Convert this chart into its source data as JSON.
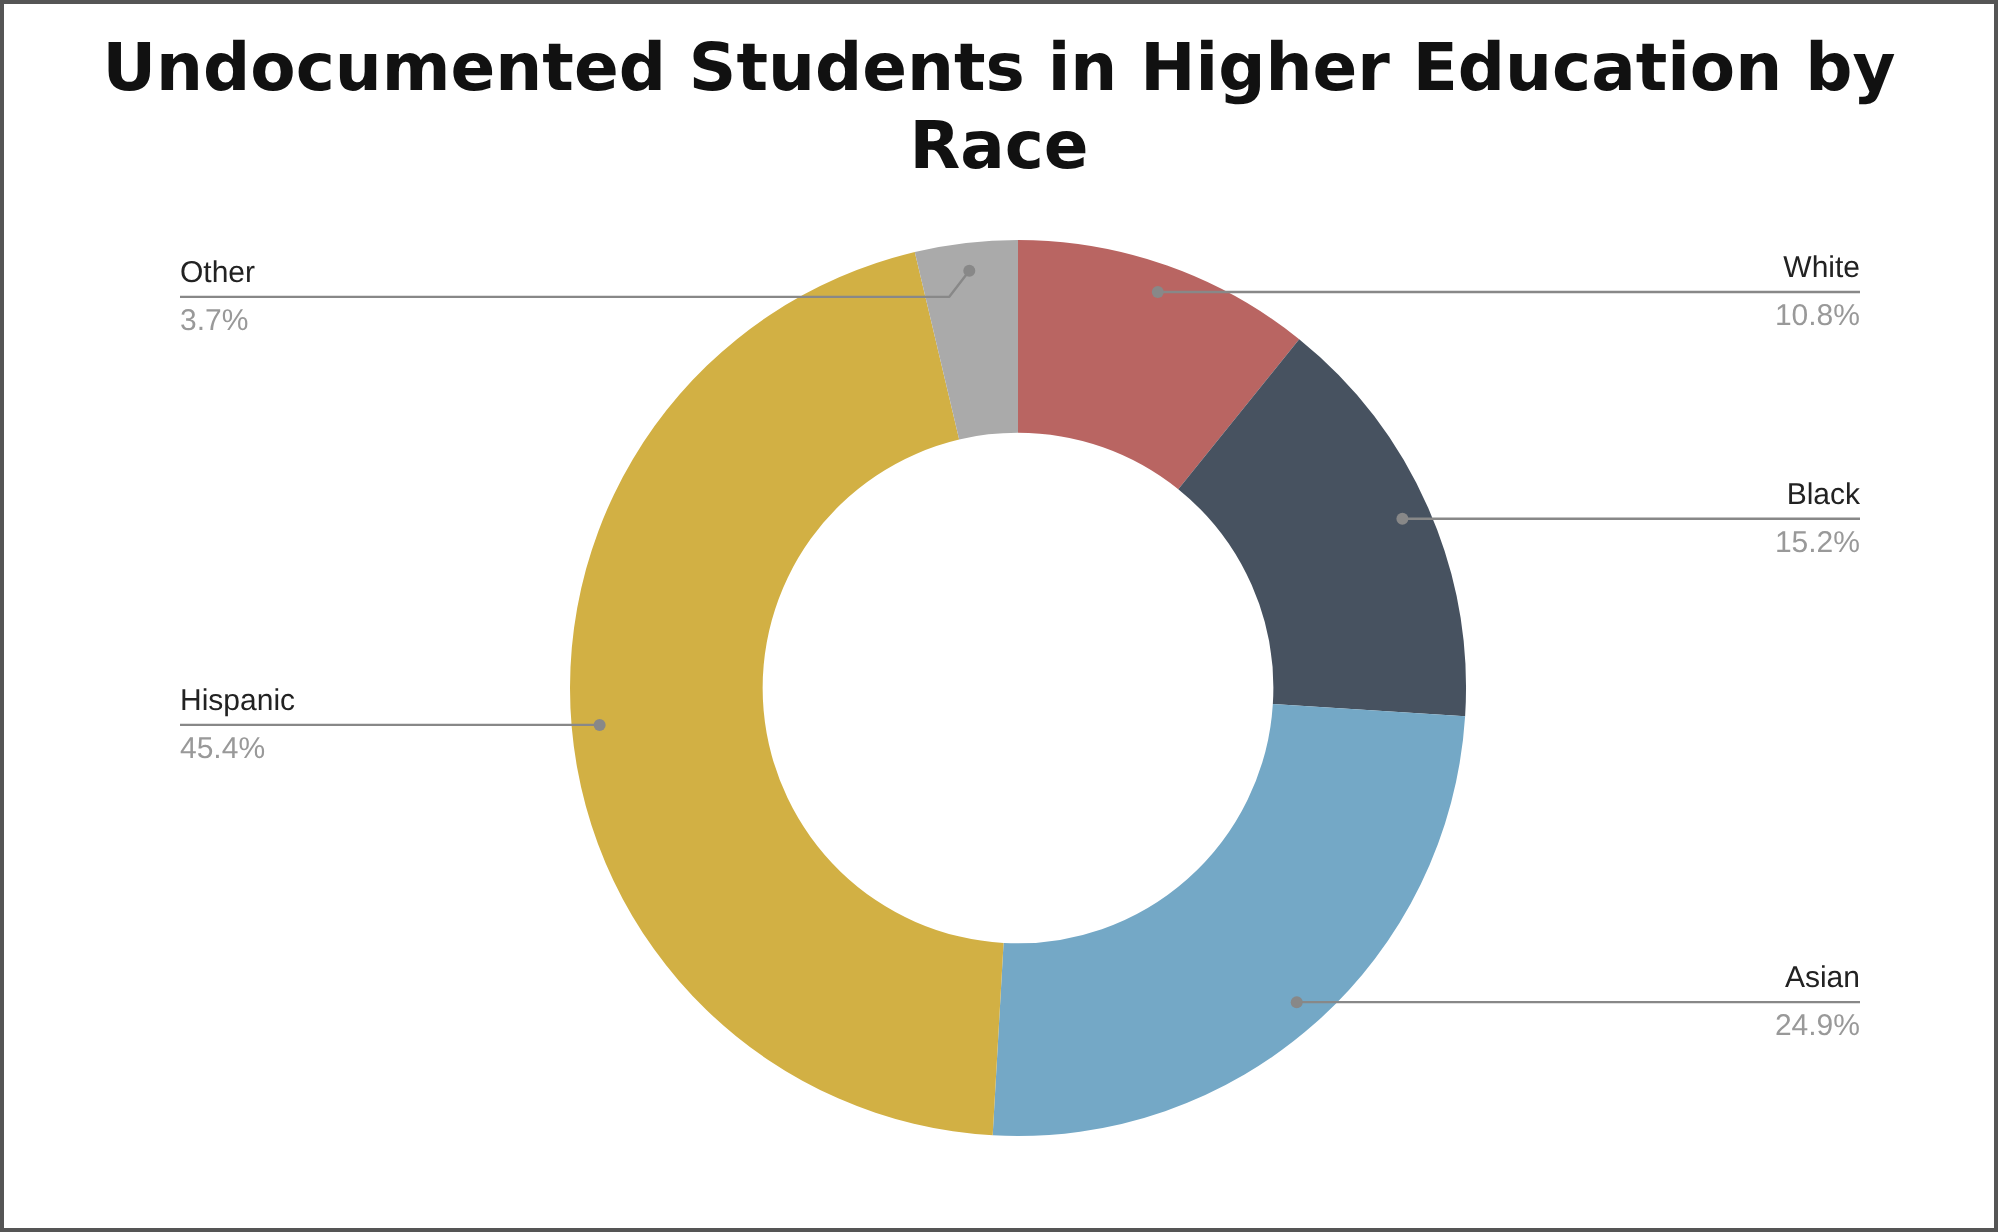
{
  "chart_data": {
    "type": "donut",
    "title": "Undocumented Students in Higher Education by Race",
    "categories": [
      "White",
      "Black",
      "Asian",
      "Hispanic",
      "Other"
    ],
    "values": [
      10.8,
      15.2,
      24.9,
      45.4,
      3.7
    ],
    "colors": [
      "#b96562",
      "#475260",
      "#74a8c6",
      "#d2b044",
      "#aaaaaa"
    ],
    "value_labels": [
      "10.8%",
      "15.2%",
      "24.9%",
      "45.4%",
      "3.7%"
    ]
  }
}
